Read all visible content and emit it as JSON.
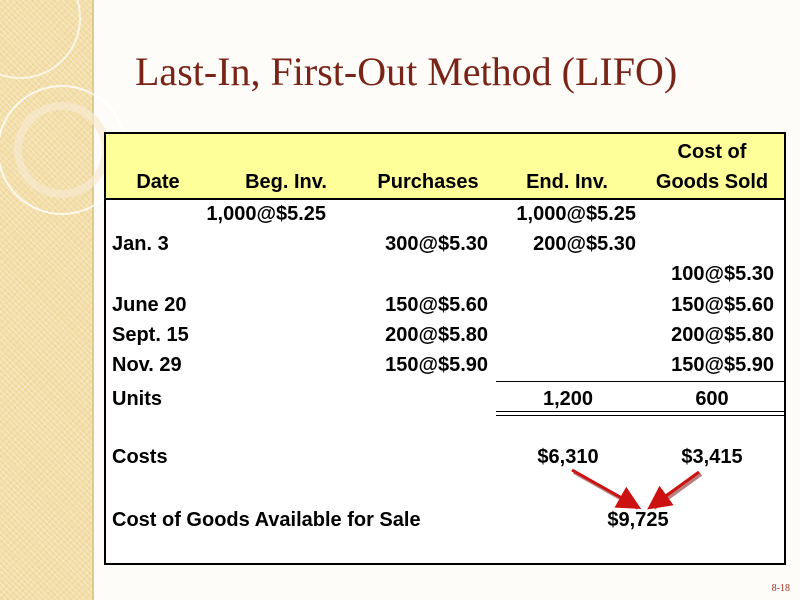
{
  "title": "Last-In, First-Out Method (LIFO)",
  "slide_number": "8-18",
  "table": {
    "headers": {
      "date": "Date",
      "beg_inv": "Beg. Inv.",
      "purchases": "Purchases",
      "end_inv": "End. Inv.",
      "cogs_line1": "Cost of",
      "cogs_line2": "Goods Sold"
    },
    "rows": [
      {
        "date": "",
        "beg_inv": "1,000@$5.25",
        "purchases": "",
        "end_inv": "1,000@$5.25",
        "cogs": ""
      },
      {
        "date": "Jan. 3",
        "beg_inv": "",
        "purchases": "300@$5.30",
        "end_inv": "200@$5.30",
        "cogs": ""
      },
      {
        "date": "",
        "beg_inv": "",
        "purchases": "",
        "end_inv": "",
        "cogs": "100@$5.30"
      },
      {
        "date": "June 20",
        "beg_inv": "",
        "purchases": "150@$5.60",
        "end_inv": "",
        "cogs": "150@$5.60"
      },
      {
        "date": "Sept. 15",
        "beg_inv": "",
        "purchases": "200@$5.80",
        "end_inv": "",
        "cogs": "200@$5.80"
      },
      {
        "date": "Nov. 29",
        "beg_inv": "",
        "purchases": "150@$5.90",
        "end_inv": "",
        "cogs": "150@$5.90"
      }
    ],
    "units": {
      "label": "Units",
      "end_inv": "1,200",
      "cogs": "600"
    },
    "costs": {
      "label": "Costs",
      "end_inv": "$6,310",
      "cogs": "$3,415"
    },
    "available": {
      "label": "Cost of Goods Available for Sale",
      "value": "$9,725"
    }
  },
  "colors": {
    "title": "#7a2418",
    "header_band": "#ffff99",
    "arrow": "#cc1111"
  }
}
